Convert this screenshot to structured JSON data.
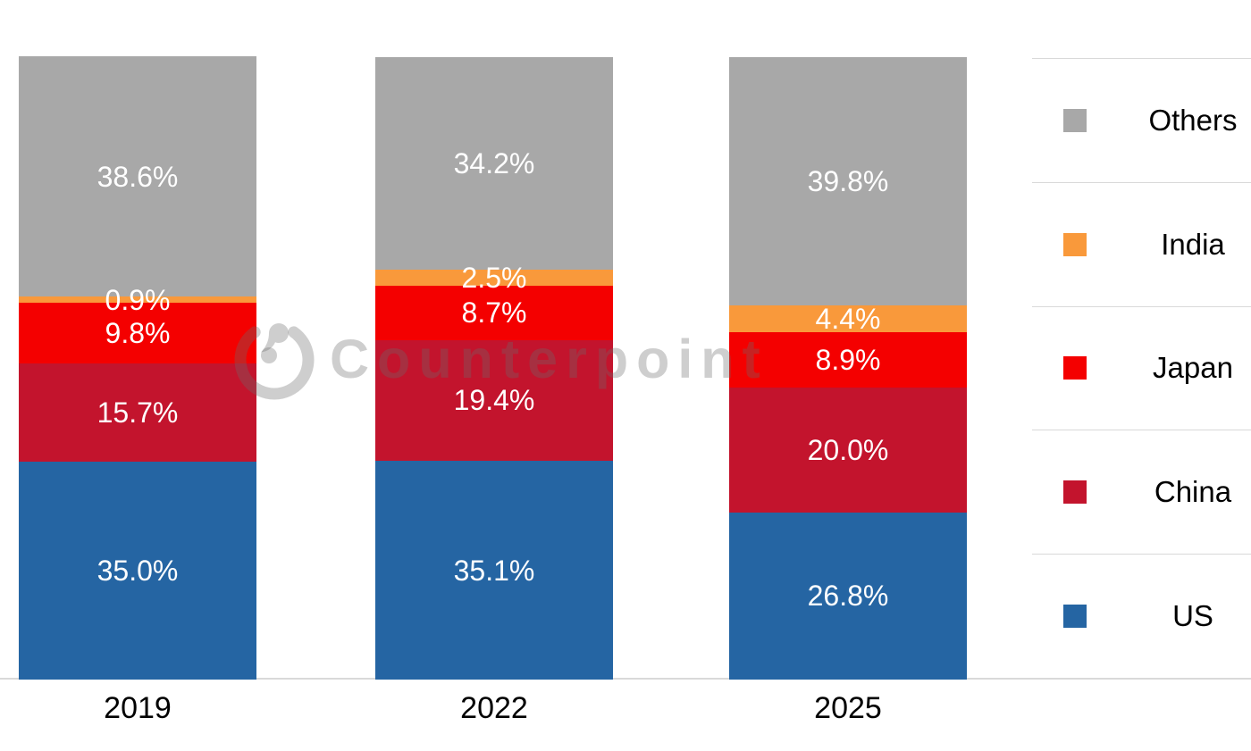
{
  "watermark": {
    "text": "Counterpoint"
  },
  "legend": {
    "items": [
      {
        "label": "Others",
        "color": "#A8A8A8"
      },
      {
        "label": "India",
        "color": "#F9993B"
      },
      {
        "label": "Japan",
        "color": "#F40000"
      },
      {
        "label": "China",
        "color": "#C3142D"
      },
      {
        "label": "US",
        "color": "#2565A3"
      }
    ]
  },
  "chart_data": {
    "type": "bar",
    "stacked": true,
    "unit": "%",
    "categories": [
      "2019",
      "2022",
      "2025"
    ],
    "series": [
      {
        "name": "US",
        "color": "#2565A3",
        "values": [
          35.0,
          35.1,
          26.8
        ],
        "labels": [
          "35.0%",
          "35.1%",
          "26.8%"
        ]
      },
      {
        "name": "China",
        "color": "#C3142D",
        "values": [
          15.7,
          19.4,
          20.0
        ],
        "labels": [
          "15.7%",
          "19.4%",
          "20.0%"
        ]
      },
      {
        "name": "Japan",
        "color": "#F40000",
        "values": [
          9.8,
          8.7,
          8.9
        ],
        "labels": [
          "9.8%",
          "8.7%",
          "8.9%"
        ]
      },
      {
        "name": "India",
        "color": "#F9993B",
        "values": [
          0.9,
          2.5,
          4.4
        ],
        "labels": [
          "0.9%",
          "2.5%",
          "4.4%"
        ]
      },
      {
        "name": "Others",
        "color": "#A8A8A8",
        "values": [
          38.6,
          34.2,
          39.8
        ],
        "labels": [
          "38.6%",
          "34.2%",
          "39.8%"
        ]
      }
    ],
    "stack_order_bottom_to_top": [
      "US",
      "China",
      "Japan",
      "India",
      "Others"
    ],
    "value_labels_shown": true,
    "legend_position": "right",
    "ylim": [
      0,
      100
    ],
    "grid": false
  }
}
